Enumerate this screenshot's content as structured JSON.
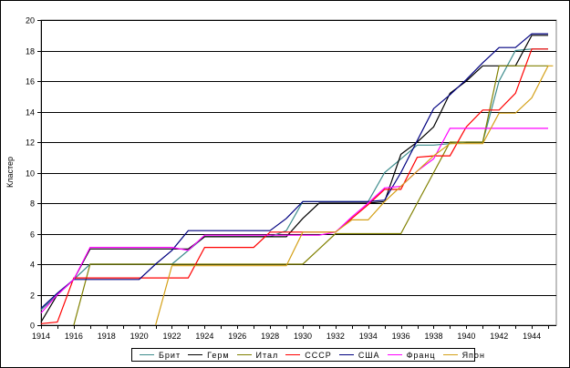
{
  "chart_data": {
    "type": "line",
    "title": "",
    "xlabel": "",
    "ylabel": "Кластер",
    "xlim": [
      1914,
      1945.5
    ],
    "ylim": [
      0,
      20
    ],
    "yticks": [
      0,
      2,
      4,
      6,
      8,
      10,
      12,
      14,
      16,
      18,
      20
    ],
    "xticks": [
      1914,
      1916,
      1918,
      1920,
      1922,
      1924,
      1926,
      1928,
      1930,
      1932,
      1934,
      1936,
      1938,
      1940,
      1942,
      1944
    ],
    "grid": "horizontal",
    "legend_position": "bottom",
    "series": [
      {
        "name": "Брит",
        "color": "#3d8c8c",
        "points": [
          [
            1914,
            1
          ],
          [
            1915,
            2
          ],
          [
            1916,
            3
          ],
          [
            1917,
            4
          ],
          [
            1918,
            4
          ],
          [
            1922,
            4
          ],
          [
            1924,
            5.8
          ],
          [
            1928,
            5.8
          ],
          [
            1929,
            6.2
          ],
          [
            1930,
            8.1
          ],
          [
            1933,
            8.1
          ],
          [
            1934,
            8.1
          ],
          [
            1935,
            10
          ],
          [
            1937,
            11.8
          ],
          [
            1938,
            11.8
          ],
          [
            1940,
            12
          ],
          [
            1941,
            12
          ],
          [
            1942,
            16
          ],
          [
            1943,
            18
          ],
          [
            1944,
            18.1
          ],
          [
            1945,
            18.1
          ]
        ]
      },
      {
        "name": "Герм",
        "color": "#000000",
        "points": [
          [
            1914,
            0.2
          ],
          [
            1915,
            2
          ],
          [
            1916,
            3
          ],
          [
            1917,
            5
          ],
          [
            1922,
            5
          ],
          [
            1923,
            5
          ],
          [
            1924,
            5.8
          ],
          [
            1929,
            5.8
          ],
          [
            1930,
            7
          ],
          [
            1931,
            8
          ],
          [
            1934,
            8
          ],
          [
            1935,
            8.1
          ],
          [
            1936,
            11.2
          ],
          [
            1937,
            12
          ],
          [
            1938,
            13
          ],
          [
            1939,
            15.2
          ],
          [
            1940,
            16
          ],
          [
            1941,
            17
          ],
          [
            1943,
            17
          ],
          [
            1944,
            19
          ],
          [
            1945,
            19
          ]
        ]
      },
      {
        "name": "Итал",
        "color": "#808000",
        "points": [
          [
            1916,
            0
          ],
          [
            1917,
            4
          ],
          [
            1929,
            4
          ],
          [
            1930,
            4
          ],
          [
            1931,
            5
          ],
          [
            1932,
            6
          ],
          [
            1936,
            6
          ],
          [
            1937,
            8
          ],
          [
            1938,
            10
          ],
          [
            1939,
            12
          ],
          [
            1941,
            12
          ],
          [
            1942,
            17
          ],
          [
            1945,
            17
          ]
        ]
      },
      {
        "name": "СССР",
        "color": "#ff0000",
        "points": [
          [
            1914,
            0.1
          ],
          [
            1915,
            0.2
          ],
          [
            1916,
            3.1
          ],
          [
            1922,
            3.1
          ],
          [
            1923,
            3.1
          ],
          [
            1924,
            5.1
          ],
          [
            1927,
            5.1
          ],
          [
            1928,
            6.1
          ],
          [
            1931,
            6.1
          ],
          [
            1932,
            6.1
          ],
          [
            1934,
            7.9
          ],
          [
            1935,
            8.9
          ],
          [
            1936,
            8.9
          ],
          [
            1937,
            11
          ],
          [
            1938,
            11.1
          ],
          [
            1939,
            11.1
          ],
          [
            1940,
            13
          ],
          [
            1941,
            14.1
          ],
          [
            1942,
            14.1
          ],
          [
            1943,
            15.2
          ],
          [
            1944,
            18.1
          ],
          [
            1945,
            18.1
          ]
        ]
      },
      {
        "name": "США",
        "color": "#000080",
        "points": [
          [
            1914,
            1.1
          ],
          [
            1915,
            2.1
          ],
          [
            1916,
            3
          ],
          [
            1920,
            3
          ],
          [
            1921,
            4
          ],
          [
            1922,
            4.9
          ],
          [
            1923,
            6.2
          ],
          [
            1928,
            6.2
          ],
          [
            1929,
            7
          ],
          [
            1930,
            8.1
          ],
          [
            1934,
            8.1
          ],
          [
            1935,
            8.2
          ],
          [
            1936,
            10
          ],
          [
            1937,
            12.1
          ],
          [
            1938,
            14.2
          ],
          [
            1939,
            15.1
          ],
          [
            1940,
            16.1
          ],
          [
            1941,
            17.2
          ],
          [
            1942,
            18.2
          ],
          [
            1943,
            18.2
          ],
          [
            1944,
            19.1
          ],
          [
            1945,
            19.1
          ]
        ]
      },
      {
        "name": "Франц",
        "color": "#ff00ff",
        "points": [
          [
            1914,
            0.8
          ],
          [
            1915,
            2
          ],
          [
            1916,
            3
          ],
          [
            1917,
            5.1
          ],
          [
            1922,
            5.1
          ],
          [
            1923,
            4.9
          ],
          [
            1924,
            5.9
          ],
          [
            1928,
            5.9
          ],
          [
            1931,
            5.9
          ],
          [
            1932,
            6.1
          ],
          [
            1933,
            7.1
          ],
          [
            1934,
            8
          ],
          [
            1935,
            9
          ],
          [
            1936,
            9.1
          ],
          [
            1937,
            10.1
          ],
          [
            1938,
            10.9
          ],
          [
            1939,
            12.9
          ],
          [
            1941,
            12.9
          ],
          [
            1942,
            12.9
          ],
          [
            1945,
            12.9
          ]
        ]
      },
      {
        "name": "Япон",
        "color": "#d4a017",
        "points": [
          [
            1921,
            0
          ],
          [
            1922,
            3.9
          ],
          [
            1929,
            3.9
          ],
          [
            1930,
            6.1
          ],
          [
            1932,
            6.1
          ],
          [
            1933,
            6.9
          ],
          [
            1934,
            6.9
          ],
          [
            1935,
            8.1
          ],
          [
            1937,
            10.1
          ],
          [
            1938,
            11.1
          ],
          [
            1939,
            11.9
          ],
          [
            1941,
            11.9
          ],
          [
            1942,
            13.9
          ],
          [
            1943,
            13.9
          ],
          [
            1944,
            14.9
          ],
          [
            1945,
            17
          ],
          [
            1945.3,
            17
          ]
        ]
      }
    ]
  }
}
